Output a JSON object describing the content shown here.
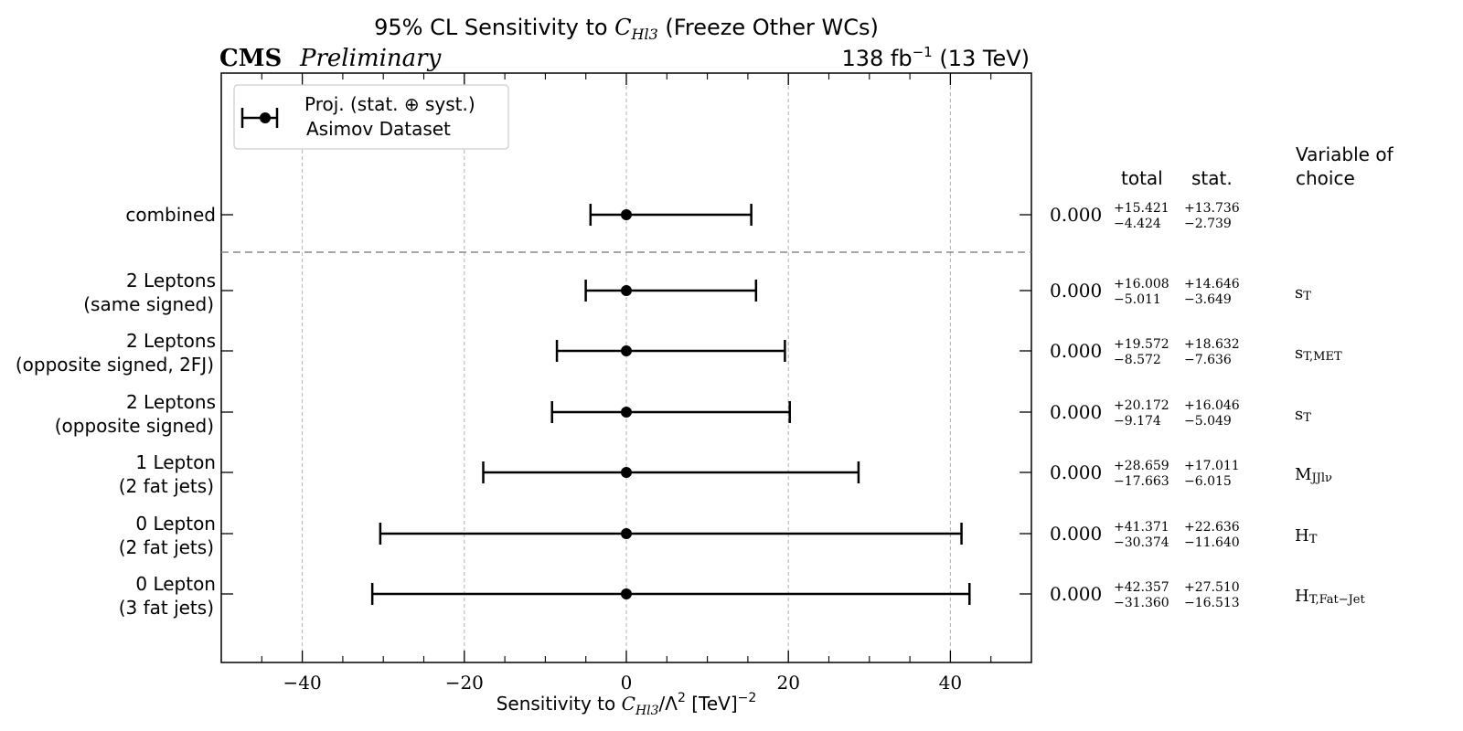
{
  "header": {
    "title": "95% CL Sensitivity to C_Hl3 (Freeze Other WCs)",
    "experiment": "CMS",
    "status": "Preliminary",
    "lumi": "138 fb⁻¹ (13 TeV)"
  },
  "legend": {
    "line1": "Proj. (stat. ⊕ syst.)",
    "line2": "Asimov Dataset"
  },
  "columns": {
    "total": "total",
    "stat": "stat.",
    "variable": [
      "Variable of",
      "choice"
    ]
  },
  "chart_data": {
    "type": "errorbar",
    "title": "95% CL Sensitivity to C_Hl3 (Freeze Other WCs)",
    "xlabel": "Sensitivity to C_Hl3/Λ² [TeV]⁻²",
    "xlim": [
      -50,
      50
    ],
    "xticks": [
      -40,
      -20,
      0,
      20,
      40
    ],
    "xtick_labels": [
      "−40",
      "−20",
      "0",
      "20",
      "40"
    ],
    "grid": "vertical dashed",
    "legend_position": "top-left",
    "rows": [
      {
        "label": [
          "combined"
        ],
        "central": 0.0,
        "central_text": "0.000",
        "total_up": "+15.421",
        "total_down": "−4.424",
        "stat_up": "+13.736",
        "stat_down": "−2.739",
        "err_up": 15.421,
        "err_down": 4.424,
        "variable": ""
      },
      {
        "label": [
          "2 Leptons",
          "(same signed)"
        ],
        "central": 0.0,
        "central_text": "0.000",
        "total_up": "+16.008",
        "total_down": "−5.011",
        "stat_up": "+14.646",
        "stat_down": "−3.649",
        "err_up": 16.008,
        "err_down": 5.011,
        "variable": "sT"
      },
      {
        "label": [
          "2 Leptons",
          "(opposite signed, 2FJ)"
        ],
        "central": 0.0,
        "central_text": "0.000",
        "total_up": "+19.572",
        "total_down": "−8.572",
        "stat_up": "+18.632",
        "stat_down": "−7.636",
        "err_up": 19.572,
        "err_down": 8.572,
        "variable": "sT,MET"
      },
      {
        "label": [
          "2 Leptons",
          "(opposite signed)"
        ],
        "central": 0.0,
        "central_text": "0.000",
        "total_up": "+20.172",
        "total_down": "−9.174",
        "stat_up": "+16.046",
        "stat_down": "−5.049",
        "err_up": 20.172,
        "err_down": 9.174,
        "variable": "sT"
      },
      {
        "label": [
          "1 Lepton",
          "(2 fat jets)"
        ],
        "central": 0.0,
        "central_text": "0.000",
        "total_up": "+28.659",
        "total_down": "−17.663",
        "stat_up": "+17.011",
        "stat_down": "−6.015",
        "err_up": 28.659,
        "err_down": 17.663,
        "variable": "MJJlν"
      },
      {
        "label": [
          "0 Lepton",
          "(2 fat jets)"
        ],
        "central": 0.0,
        "central_text": "0.000",
        "total_up": "+41.371",
        "total_down": "−30.374",
        "stat_up": "+22.636",
        "stat_down": "−11.640",
        "err_up": 41.371,
        "err_down": 30.374,
        "variable": "HT"
      },
      {
        "label": [
          "0 Lepton",
          "(3 fat jets)"
        ],
        "central": 0.0,
        "central_text": "0.000",
        "total_up": "+42.357",
        "total_down": "−31.360",
        "stat_up": "+27.510",
        "stat_down": "−16.513",
        "err_up": 42.357,
        "err_down": 31.36,
        "variable": "HT,Fat−Jet"
      }
    ]
  }
}
